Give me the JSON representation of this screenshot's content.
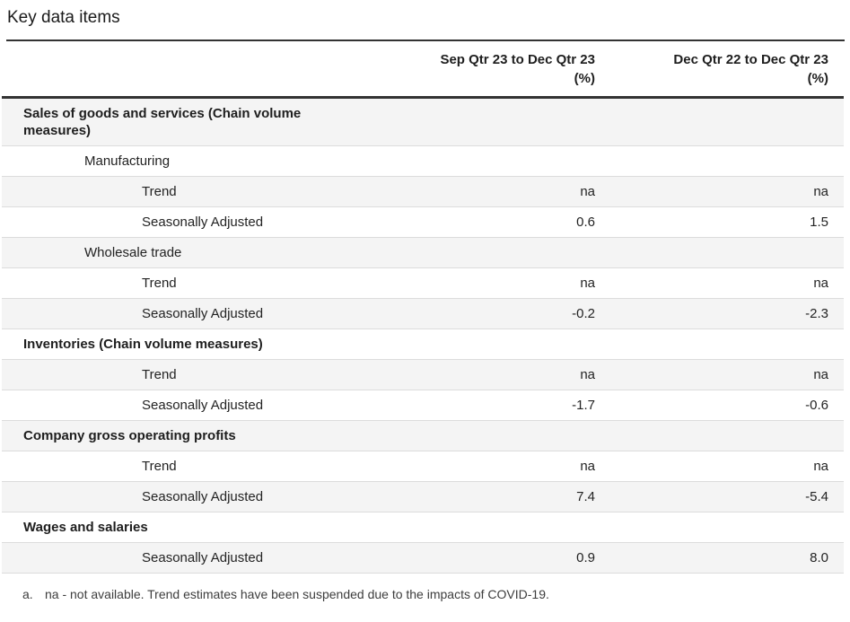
{
  "page": {
    "title": "Key data items"
  },
  "table": {
    "column_headers": [
      {
        "period": "Sep Qtr 23 to Dec Qtr 23",
        "unit": "(%)"
      },
      {
        "period": "Dec Qtr 22 to Dec Qtr 23",
        "unit": "(%)"
      }
    ],
    "rows": [
      {
        "label": "Sales of goods and services (Chain volume measures)",
        "level": 0,
        "values": [
          "",
          ""
        ]
      },
      {
        "label": "Manufacturing",
        "level": 1,
        "values": [
          "",
          ""
        ]
      },
      {
        "label": "Trend",
        "level": 2,
        "values": [
          "na",
          "na"
        ]
      },
      {
        "label": "Seasonally Adjusted",
        "level": 2,
        "values": [
          "0.6",
          "1.5"
        ]
      },
      {
        "label": "Wholesale trade",
        "level": 1,
        "values": [
          "",
          ""
        ]
      },
      {
        "label": "Trend",
        "level": 2,
        "values": [
          "na",
          "na"
        ]
      },
      {
        "label": "Seasonally Adjusted",
        "level": 2,
        "values": [
          "-0.2",
          "-2.3"
        ]
      },
      {
        "label": "Inventories (Chain volume measures)",
        "level": 0,
        "values": [
          "",
          ""
        ]
      },
      {
        "label": "Trend",
        "level": 2,
        "values": [
          "na",
          "na"
        ]
      },
      {
        "label": "Seasonally Adjusted",
        "level": 2,
        "values": [
          "-1.7",
          "-0.6"
        ]
      },
      {
        "label": "Company gross operating profits",
        "level": 0,
        "values": [
          "",
          ""
        ]
      },
      {
        "label": "Trend",
        "level": 2,
        "values": [
          "na",
          "na"
        ]
      },
      {
        "label": "Seasonally Adjusted",
        "level": 2,
        "values": [
          "7.4",
          "-5.4"
        ]
      },
      {
        "label": "Wages and salaries",
        "level": 0,
        "values": [
          "",
          ""
        ]
      },
      {
        "label": "Seasonally Adjusted",
        "level": 2,
        "values": [
          "0.9",
          "8.0"
        ]
      }
    ]
  },
  "footnote": {
    "marker": "a.",
    "text": "na - not available. Trend estimates have been suspended due to the impacts of COVID-19."
  },
  "colors": {
    "row_shaded": "#f4f4f4",
    "row_separator": "#dcdcdc",
    "rule_dark": "#333333",
    "text": "#232323"
  }
}
